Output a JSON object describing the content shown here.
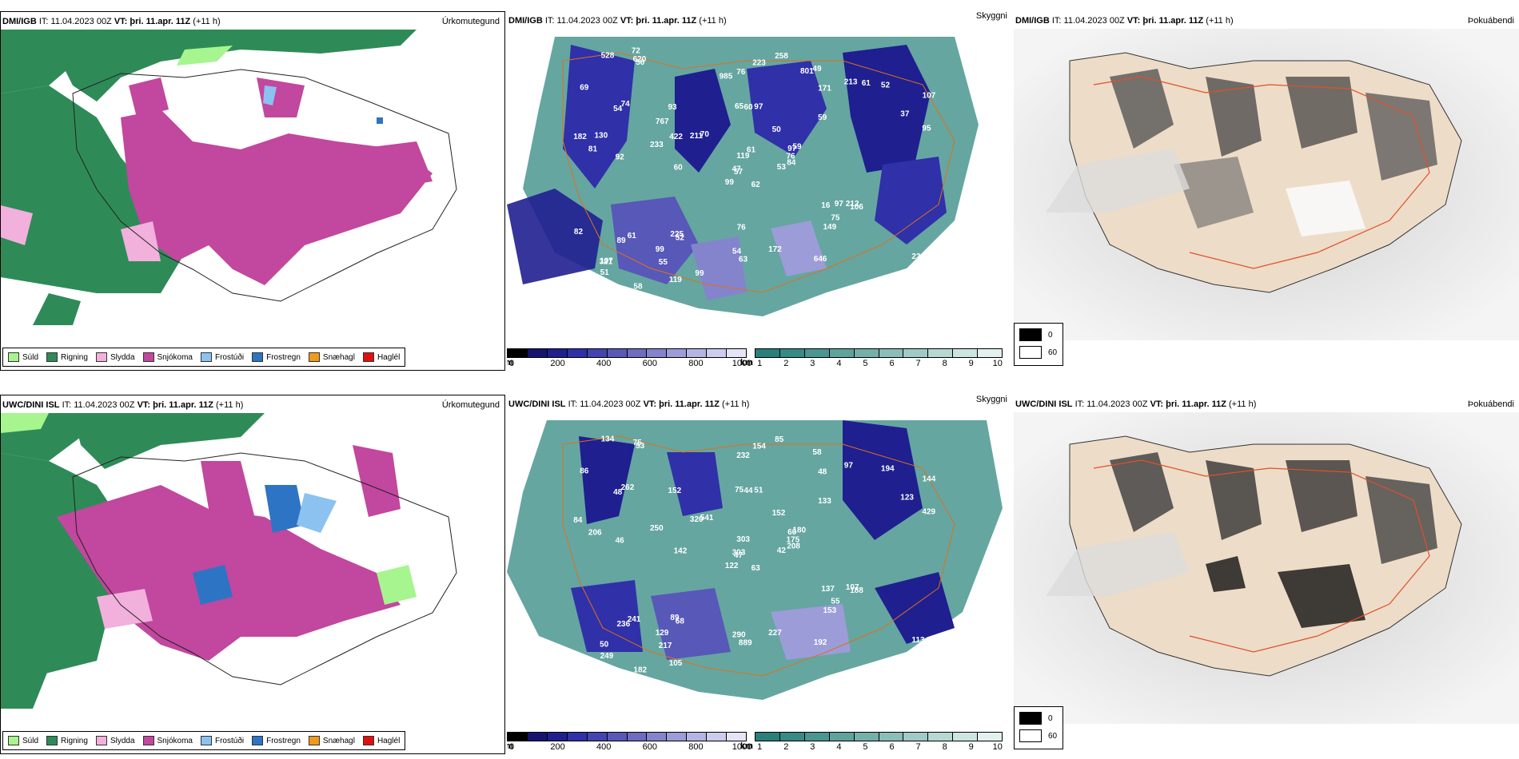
{
  "rows": [
    {
      "model": "DMI/IGB",
      "init_label": "IT:",
      "init_time": "11.04.2023 00Z",
      "valid_label": "VT:",
      "valid_time": "þri. 11.apr. 11Z",
      "lead": "(+11 h)"
    },
    {
      "model": "UWC/DINI ISL",
      "init_label": "IT:",
      "init_time": "11.04.2023 00Z",
      "valid_label": "VT:",
      "valid_time": "þri. 11.apr. 11Z",
      "lead": "(+11 h)"
    }
  ],
  "panels": {
    "precip_title": "Úrkomutegund",
    "visibility_title": "Skyggni",
    "fog_title": "Þokuábendi"
  },
  "precip_legend": [
    {
      "label": "Súld",
      "color": "#a6f58f"
    },
    {
      "label": "Rigning",
      "color": "#2e8b57"
    },
    {
      "label": "Slydda",
      "color": "#f2b0dc"
    },
    {
      "label": "Snjókoma",
      "color": "#c2479e"
    },
    {
      "label": "Frostúði",
      "color": "#8cc2f0"
    },
    {
      "label": "Frostregn",
      "color": "#2e74c4"
    },
    {
      "label": "Snæhagl",
      "color": "#f09a1e"
    },
    {
      "label": "Haglél",
      "color": "#e01010"
    }
  ],
  "ceiling_scale": {
    "unit": "m",
    "ticks": [
      "0",
      "200",
      "400",
      "600",
      "800",
      "1000"
    ],
    "colors": [
      "#000000",
      "#151570",
      "#1f1f90",
      "#3030a8",
      "#4444b0",
      "#5858b8",
      "#6c6cc0",
      "#8484cc",
      "#9c9cd8",
      "#b4b4e4",
      "#ccccee",
      "#e4e4f6"
    ]
  },
  "visibility_scale": {
    "unit": "km",
    "ticks": [
      "1",
      "2",
      "3",
      "4",
      "5",
      "6",
      "7",
      "8",
      "9",
      "10"
    ],
    "colors": [
      "#2a7f7a",
      "#378a85",
      "#4a9690",
      "#5ea39c",
      "#74b0a9",
      "#8abeb7",
      "#a0cbc5",
      "#b6d8d3",
      "#cce5e1",
      "#e2f1ef"
    ]
  },
  "fog_legend": [
    {
      "label": "0",
      "color": "#000000"
    },
    {
      "label": "60",
      "color": "#ffffff"
    }
  ],
  "ceiling_labels_top": [
    "62",
    "54",
    "57",
    "107",
    "97",
    "52",
    "49",
    "97",
    "171",
    "53",
    "56",
    "84",
    "92",
    "107",
    "99",
    "59",
    "58",
    "65",
    "50",
    "61",
    "70",
    "51",
    "55",
    "60",
    "59",
    "106",
    "74",
    "76",
    "81",
    "16",
    "95",
    "47",
    "54",
    "119",
    "93",
    "213",
    "225",
    "13",
    "238",
    "212",
    "258",
    "211",
    "233",
    "149",
    "119",
    "182",
    "76",
    "85",
    "63",
    "84",
    "89",
    "37",
    "69",
    "75",
    "646",
    "99",
    "620",
    "528",
    "172",
    "52",
    "223",
    "60",
    "130",
    "767",
    "61",
    "72",
    "801",
    "985",
    "61",
    "82",
    "76",
    "99",
    "97",
    "422",
    "321"
  ],
  "ceiling_labels_bottom": [
    "63",
    "48",
    "47",
    "50",
    "60",
    "68",
    "58",
    "51",
    "48",
    "42",
    "53",
    "46",
    "46",
    "144",
    "122",
    "133",
    "182",
    "75",
    "152",
    "241",
    "541",
    "249",
    "217",
    "44",
    "180",
    "188",
    "262",
    "232",
    "206",
    "137",
    "429",
    "303",
    "290",
    "303",
    "152",
    "97",
    "89",
    "91",
    "113",
    "107",
    "85",
    "320",
    "250",
    "153",
    "105",
    "84",
    "175",
    "642",
    "889",
    "208",
    "236",
    "123",
    "86",
    "55",
    "192",
    "129",
    "75",
    "134",
    "227",
    "194",
    "154",
    "142"
  ]
}
